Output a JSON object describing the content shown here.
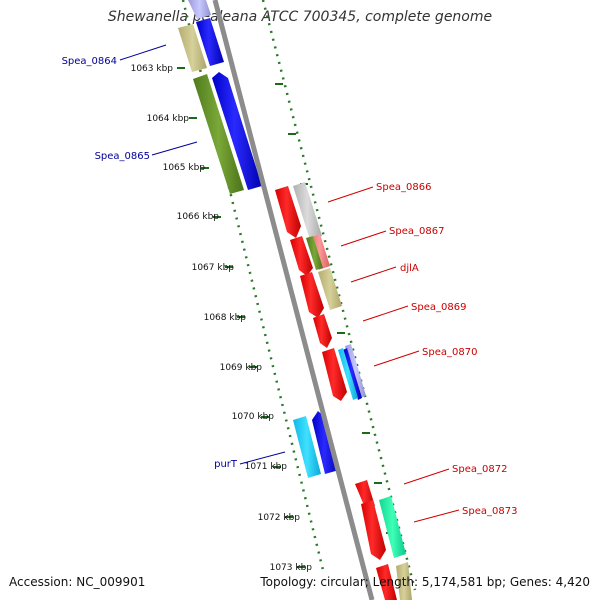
{
  "title": "Shewanella pealeana ATCC 700345, complete genome",
  "footer": {
    "accession": "Accession: NC_009901",
    "summary": "Topology: circular; Length: 5,174,581 bp; Genes: 4,420"
  },
  "colors": {
    "forward_label": "#cc0000",
    "reverse_label": "#000099",
    "backbone": "#8c8c8c",
    "tick": "#227722"
  },
  "kbp_labels": [
    "1063 kbp",
    "1064 kbp",
    "1065 kbp",
    "1066 kbp",
    "1067 kbp",
    "1068 kbp",
    "1069 kbp",
    "1070 kbp",
    "1071 kbp",
    "1072 kbp",
    "1073 kbp"
  ],
  "gene_labels": [
    {
      "text": "Spea_0864",
      "strand": "reverse"
    },
    {
      "text": "Spea_0865",
      "strand": "reverse"
    },
    {
      "text": "Spea_0866",
      "strand": "forward"
    },
    {
      "text": "Spea_0867",
      "strand": "forward"
    },
    {
      "text": "djlA",
      "strand": "forward"
    },
    {
      "text": "Spea_0869",
      "strand": "forward"
    },
    {
      "text": "Spea_0870",
      "strand": "forward"
    },
    {
      "text": "purT",
      "strand": "reverse"
    },
    {
      "text": "Spea_0872",
      "strand": "forward"
    },
    {
      "text": "Spea_0873",
      "strand": "forward"
    }
  ]
}
